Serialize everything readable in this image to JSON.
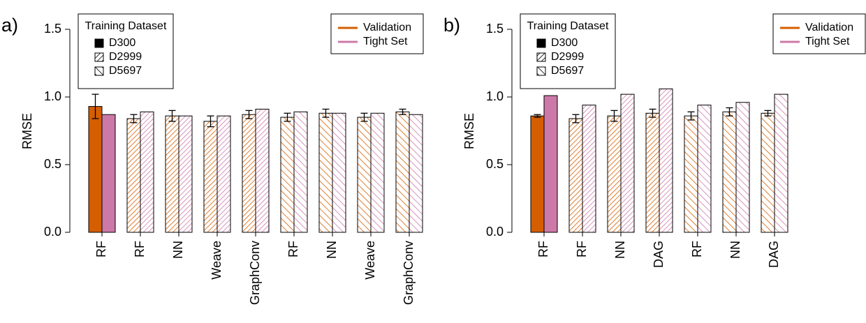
{
  "chart_data": [
    {
      "type": "bar",
      "panel_label": "a)",
      "ylabel": "RMSE",
      "categories": [
        "RF",
        "RF",
        "NN",
        "Weave",
        "GraphConv",
        "RF",
        "NN",
        "Weave",
        "GraphConv"
      ],
      "dataset": [
        "D300",
        "D2999",
        "D2999",
        "D2999",
        "D2999",
        "D5697",
        "D5697",
        "D5697",
        "D5697"
      ],
      "series": [
        {
          "name": "Validation",
          "color": "#d55e00",
          "values": [
            0.93,
            0.84,
            0.86,
            0.82,
            0.87,
            0.85,
            0.88,
            0.85,
            0.89
          ],
          "errors": [
            0.09,
            0.03,
            0.04,
            0.04,
            0.03,
            0.03,
            0.03,
            0.03,
            0.02
          ]
        },
        {
          "name": "Tight Set",
          "color": "#cc79a7",
          "values": [
            0.87,
            0.89,
            0.86,
            0.86,
            0.91,
            0.89,
            0.88,
            0.88,
            0.87
          ]
        }
      ],
      "dataset_legend": {
        "title": "Training Dataset",
        "names": [
          "D300",
          "D2999",
          "D5697"
        ]
      },
      "legend": "top right",
      "ylim": [
        0,
        1.5
      ],
      "yticks": [
        {
          "value": 0,
          "label": "0.0"
        },
        0.5,
        {
          "value": 1,
          "label": "1.0"
        },
        1.5
      ]
    },
    {
      "type": "bar",
      "panel_label": "b)",
      "ylabel": "RMSE",
      "categories": [
        "RF",
        "RF",
        "NN",
        "DAG",
        "RF",
        "NN",
        "DAG"
      ],
      "dataset": [
        "D300",
        "D2999",
        "D2999",
        "D2999",
        "D5697",
        "D5697",
        "D5697"
      ],
      "series": [
        {
          "name": "Validation",
          "color": "#d55e00",
          "values": [
            0.86,
            0.84,
            0.86,
            0.88,
            0.86,
            0.89,
            0.88
          ],
          "errors": [
            0.01,
            0.03,
            0.04,
            0.03,
            0.03,
            0.03,
            0.02
          ]
        },
        {
          "name": "Tight Set",
          "color": "#cc79a7",
          "values": [
            1.01,
            0.94,
            1.02,
            1.06,
            0.94,
            0.96,
            1.02
          ]
        }
      ],
      "dataset_legend": {
        "title": "Training Dataset",
        "names": [
          "D300",
          "D2999",
          "D5697"
        ]
      },
      "legend": "top right",
      "ylim": [
        0,
        1.5
      ],
      "yticks": [
        {
          "value": 0,
          "label": "0.0"
        },
        0.5,
        {
          "value": 1,
          "label": "1.0"
        },
        1.5
      ]
    }
  ]
}
